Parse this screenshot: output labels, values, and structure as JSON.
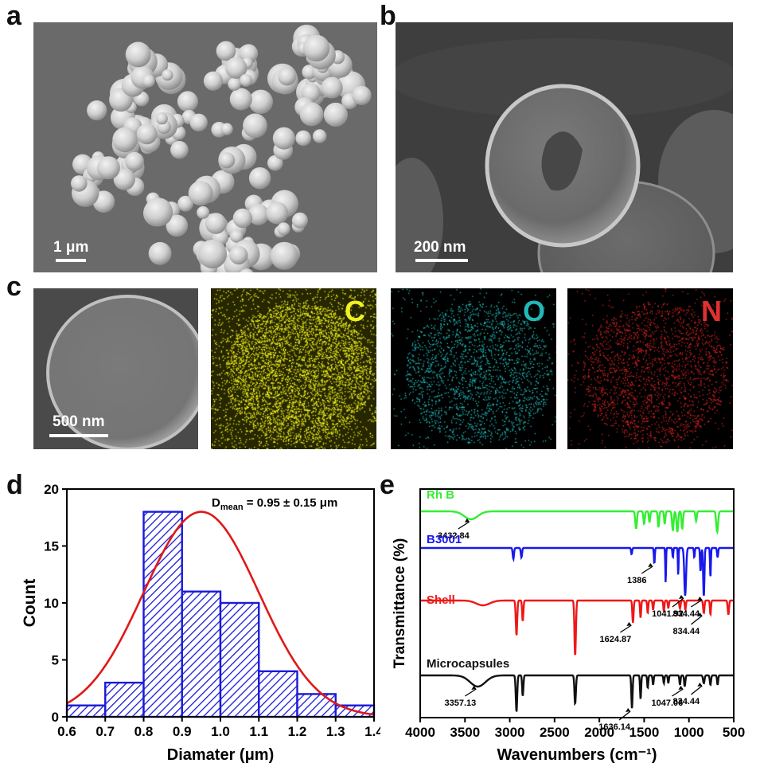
{
  "panels": {
    "a": {
      "label": "a",
      "scale_bar": "1 μm"
    },
    "b": {
      "label": "b",
      "scale_bar": "200 nm"
    },
    "c": {
      "label": "c",
      "scale_bar": "500 nm",
      "maps": [
        {
          "element": "C",
          "color": "#ffff20"
        },
        {
          "element": "O",
          "color": "#20c8c8"
        },
        {
          "element": "N",
          "color": "#e52424"
        }
      ]
    },
    "d": {
      "label": "d"
    },
    "e": {
      "label": "e"
    }
  },
  "chart_data": [
    {
      "type": "bar",
      "panel": "d",
      "bins": [
        [
          0.6,
          0.7
        ],
        [
          0.7,
          0.8
        ],
        [
          0.8,
          0.9
        ],
        [
          0.9,
          1.0
        ],
        [
          1.0,
          1.1
        ],
        [
          1.1,
          1.2
        ],
        [
          1.2,
          1.3
        ],
        [
          1.3,
          1.4
        ]
      ],
      "values": [
        1,
        3,
        18,
        11,
        10,
        4,
        2,
        1
      ],
      "fit_curve": {
        "type": "gaussian",
        "mean": 0.95,
        "sd": 0.15,
        "peak": 18
      },
      "annotation": {
        "main": "D",
        "sub": "mean",
        "rest": " = 0.95 ± 0.15 μm"
      },
      "xlabel": "Diamater (μm)",
      "ylabel": "Count",
      "xlim": [
        0.6,
        1.4
      ],
      "ylim": [
        0,
        20
      ],
      "xticks": [
        "0.6",
        "0.7",
        "0.8",
        "0.9",
        "1.0",
        "1.1",
        "1.2",
        "1.3",
        "1.4"
      ],
      "yticks": [
        "0",
        "5",
        "10",
        "15",
        "20"
      ],
      "colors": {
        "bars": "#1a1ad8",
        "fit": "#e01818"
      }
    },
    {
      "type": "line",
      "panel": "e",
      "xlabel": "Wavenumbers (cm⁻¹)",
      "ylabel": "Transmittance (%)",
      "xlim": [
        4000,
        500
      ],
      "xticks": [
        "4000",
        "3500",
        "3000",
        "2500",
        "2000",
        "1500",
        "1000",
        "500"
      ],
      "series": [
        {
          "name": "Rh B",
          "color": "#33ee33",
          "offset": 0,
          "peaks": [
            [
              3432.84,
              10,
              150
            ],
            [
              1590,
              22,
              18
            ],
            [
              1500,
              16,
              15
            ],
            [
              1440,
              14,
              14
            ],
            [
              1340,
              20,
              15
            ],
            [
              1270,
              16,
              14
            ],
            [
              1180,
              24,
              18
            ],
            [
              1130,
              26,
              18
            ],
            [
              1075,
              22,
              16
            ],
            [
              920,
              12,
              15
            ],
            [
              685,
              26,
              20
            ]
          ],
          "annotations": [
            {
              "x": 3432.84,
              "label": "3432.84"
            }
          ]
        },
        {
          "name": "B3001",
          "color": "#1818ee",
          "offset": 1,
          "peaks": [
            [
              2960,
              14,
              14
            ],
            [
              2870,
              12,
              14
            ],
            [
              1640,
              8,
              12
            ],
            [
              1386,
              20,
              10
            ],
            [
              1260,
              45,
              8
            ],
            [
              1180,
              12,
              10
            ],
            [
              1120,
              35,
              8
            ],
            [
              1041.92,
              60,
              20
            ],
            [
              940,
              12,
              10
            ],
            [
              870,
              30,
              12
            ],
            [
              834.44,
              62,
              14
            ],
            [
              760,
              38,
              10
            ],
            [
              680,
              12,
              12
            ]
          ],
          "annotations": [
            {
              "x": 1386,
              "label": "1386"
            },
            {
              "x": 1041.92,
              "label": "1041.92"
            },
            {
              "x": 834.44,
              "label": "834.44"
            }
          ]
        },
        {
          "name": "Shell",
          "color": "#ee1818",
          "offset": 2,
          "peaks": [
            [
              3300,
              6,
              150
            ],
            [
              2925,
              44,
              16
            ],
            [
              2855,
              26,
              14
            ],
            [
              2270,
              70,
              16
            ],
            [
              1624.87,
              28,
              14
            ],
            [
              1540,
              22,
              12
            ],
            [
              1460,
              16,
              12
            ],
            [
              1400,
              12,
              12
            ],
            [
              1280,
              14,
              12
            ],
            [
              1230,
              10,
              12
            ],
            [
              1100,
              10,
              14
            ],
            [
              1040,
              12,
              12
            ],
            [
              834.44,
              16,
              14
            ],
            [
              760,
              18,
              12
            ],
            [
              560,
              18,
              14
            ]
          ],
          "annotations": [
            {
              "x": 1624.87,
              "label": "1624.87"
            },
            {
              "x": 834.44,
              "label": "834.44"
            }
          ]
        },
        {
          "name": "Microcapsules",
          "color": "#111111",
          "offset": 3,
          "peaks": [
            [
              3357.13,
              14,
              170
            ],
            [
              2925,
              46,
              16
            ],
            [
              2855,
              26,
              14
            ],
            [
              2270,
              36,
              16
            ],
            [
              1636.14,
              42,
              14
            ],
            [
              1540,
              30,
              12
            ],
            [
              1460,
              16,
              12
            ],
            [
              1400,
              12,
              12
            ],
            [
              1280,
              10,
              12
            ],
            [
              1230,
              10,
              12
            ],
            [
              1100,
              12,
              12
            ],
            [
              1047.06,
              14,
              14
            ],
            [
              834.44,
              10,
              16
            ],
            [
              760,
              12,
              14
            ],
            [
              680,
              12,
              12
            ]
          ],
          "annotations": [
            {
              "x": 3357.13,
              "label": "3357.13"
            },
            {
              "x": 1636.14,
              "label": "1636.14"
            },
            {
              "x": 1047.06,
              "label": "1047.06"
            },
            {
              "x": 834.44,
              "label": "834.44"
            }
          ]
        }
      ]
    }
  ]
}
